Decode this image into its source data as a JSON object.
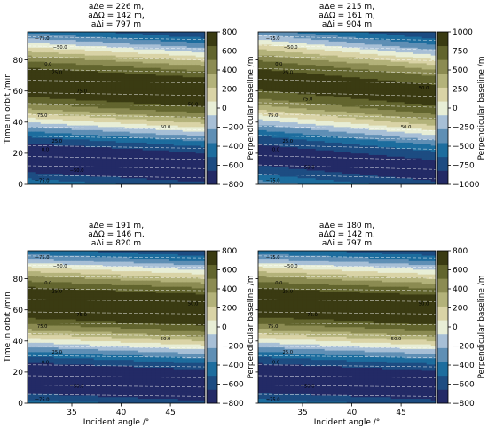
{
  "figure": {
    "background": "#ffffff",
    "band_colors": [
      "#232a66",
      "#1d4c82",
      "#1d6d9e",
      "#5f8fb5",
      "#a7bfd6",
      "#e8eed6",
      "#d9d3a6",
      "#b3b27a",
      "#8b8b52",
      "#62652e",
      "#3a3b12"
    ]
  },
  "chart_data": [
    {
      "type": "contour",
      "title_lines": [
        "aΔe = 226 m,",
        "aΔΩ = 142 m,",
        "aΔi = 797 m"
      ],
      "xlabel": "",
      "ylabel": "Time in orbit /min",
      "xlim": [
        30.5,
        48.5
      ],
      "ylim": [
        0,
        98
      ],
      "xticks": [
        35,
        40,
        45
      ],
      "xtick_labels": [
        "",
        "",
        ""
      ],
      "yticks": [
        0,
        20,
        40,
        60,
        80
      ],
      "ytick_labels": [
        "0",
        "20",
        "40",
        "60",
        "80"
      ],
      "colorbar": {
        "label": "Perpendicular baseline /m",
        "range": [
          -800,
          800
        ],
        "ticks": [
          -800,
          -600,
          -400,
          -200,
          0,
          200,
          400,
          600,
          800
        ],
        "tick_labels": [
          "−800",
          "−600",
          "−400",
          "−200",
          "0",
          "200",
          "400",
          "600",
          "800"
        ]
      },
      "model": {
        "amplitude": 797,
        "period": 97,
        "phase": -14,
        "tilt": 0.35,
        "x0": 39.5
      },
      "contour_labels": [
        {
          "text": "−75.0",
          "x": 32.0,
          "y": 94.0
        },
        {
          "text": "−50.0",
          "x": 33.8,
          "y": 88.3
        },
        {
          "text": "0.0",
          "x": 32.6,
          "y": 77.5
        },
        {
          "text": "25.0",
          "x": 33.5,
          "y": 72.0
        },
        {
          "text": "75.0",
          "x": 36.0,
          "y": 60.0
        },
        {
          "text": "50.0",
          "x": 47.3,
          "y": 51.5
        },
        {
          "text": "75.0",
          "x": 32.0,
          "y": 44.5
        },
        {
          "text": "50.0",
          "x": 44.5,
          "y": 37.0
        },
        {
          "text": "25.0",
          "x": 33.5,
          "y": 28.0
        },
        {
          "text": "0.0",
          "x": 32.3,
          "y": 22.5
        },
        {
          "text": "−50.0",
          "x": 35.5,
          "y": 9.0
        },
        {
          "text": "−75.0",
          "x": 32.0,
          "y": 2.5
        }
      ]
    },
    {
      "type": "contour",
      "title_lines": [
        "aΔe = 215 m,",
        "aΔΩ = 161 m,",
        "aΔi = 904 m"
      ],
      "xlabel": "",
      "ylabel": "",
      "xlim": [
        30.5,
        48.5
      ],
      "ylim": [
        0,
        98
      ],
      "xticks": [
        35,
        40,
        45
      ],
      "xtick_labels": [
        "",
        "",
        ""
      ],
      "yticks": [
        0,
        20,
        40,
        60,
        80
      ],
      "ytick_labels": [
        "",
        "",
        "",
        "",
        ""
      ],
      "colorbar": {
        "label": "Perpendicular baseline /m",
        "range": [
          -1000,
          1000
        ],
        "ticks": [
          -1000,
          -750,
          -500,
          -250,
          0,
          250,
          500,
          750,
          1000
        ],
        "tick_labels": [
          "−1000",
          "−750",
          "−500",
          "−250",
          "0",
          "250",
          "500",
          "750",
          "1000"
        ]
      },
      "model": {
        "amplitude": 904,
        "period": 97,
        "phase": -14,
        "tilt": 0.55,
        "x0": 39.5
      },
      "contour_labels": [
        {
          "text": "−75.0",
          "x": 32.0,
          "y": 94.0
        },
        {
          "text": "−50.0",
          "x": 33.8,
          "y": 88.3
        },
        {
          "text": "0.0",
          "x": 32.6,
          "y": 77.5
        },
        {
          "text": "25.0",
          "x": 33.5,
          "y": 72.0
        },
        {
          "text": "75.0",
          "x": 35.5,
          "y": 55.0
        },
        {
          "text": "50.0",
          "x": 47.3,
          "y": 62.0
        },
        {
          "text": "75.0",
          "x": 32.0,
          "y": 44.5
        },
        {
          "text": "50.0",
          "x": 45.5,
          "y": 37.0
        },
        {
          "text": "25.0",
          "x": 33.5,
          "y": 28.0
        },
        {
          "text": "0.0",
          "x": 32.3,
          "y": 22.5
        },
        {
          "text": "−50.0",
          "x": 35.5,
          "y": 11.0
        },
        {
          "text": "−75.0",
          "x": 32.0,
          "y": 2.5
        }
      ]
    },
    {
      "type": "contour",
      "title_lines": [
        "aΔe = 191 m,",
        "aΔΩ = 146 m,",
        "aΔi = 820 m"
      ],
      "xlabel": "Incident angle /°",
      "ylabel": "Time in orbit /min",
      "xlim": [
        30.5,
        48.5
      ],
      "ylim": [
        0,
        98
      ],
      "xticks": [
        35,
        40,
        45
      ],
      "xtick_labels": [
        "35",
        "40",
        "45"
      ],
      "yticks": [
        0,
        20,
        40,
        60,
        80
      ],
      "ytick_labels": [
        "0",
        "20",
        "40",
        "60",
        "80"
      ],
      "colorbar": {
        "label": "Perpendicular baseline /m",
        "range": [
          -800,
          800
        ],
        "ticks": [
          -800,
          -600,
          -400,
          -200,
          0,
          200,
          400,
          600,
          800
        ],
        "tick_labels": [
          "−800",
          "−600",
          "−400",
          "−200",
          "0",
          "200",
          "400",
          "600",
          "800"
        ]
      },
      "model": {
        "amplitude": 820,
        "period": 97,
        "phase": -14,
        "tilt": 0.25,
        "x0": 39.5
      },
      "contour_labels": [
        {
          "text": "−75.0",
          "x": 32.0,
          "y": 94.0
        },
        {
          "text": "−50.0",
          "x": 33.8,
          "y": 88.3
        },
        {
          "text": "0.0",
          "x": 32.6,
          "y": 77.5
        },
        {
          "text": "25.0",
          "x": 33.5,
          "y": 72.0
        },
        {
          "text": "75.0",
          "x": 36.0,
          "y": 57.0
        },
        {
          "text": "50.0",
          "x": 47.3,
          "y": 64.0
        },
        {
          "text": "75.0",
          "x": 32.0,
          "y": 49.5
        },
        {
          "text": "50.0",
          "x": 44.5,
          "y": 41.5
        },
        {
          "text": "25.0",
          "x": 33.5,
          "y": 33.0
        },
        {
          "text": "0.0",
          "x": 32.3,
          "y": 26.5
        },
        {
          "text": "−50.0",
          "x": 35.5,
          "y": 11.0
        },
        {
          "text": "−75.0",
          "x": 32.0,
          "y": 2.5
        }
      ]
    },
    {
      "type": "contour",
      "title_lines": [
        "aΔe = 180 m,",
        "aΔΩ = 142 m,",
        "aΔi = 797 m"
      ],
      "xlabel": "Incident angle /°",
      "ylabel": "",
      "xlim": [
        30.5,
        48.5
      ],
      "ylim": [
        0,
        98
      ],
      "xticks": [
        35,
        40,
        45
      ],
      "xtick_labels": [
        "35",
        "40",
        "45"
      ],
      "yticks": [
        0,
        20,
        40,
        60,
        80
      ],
      "ytick_labels": [
        "",
        "",
        "",
        "",
        ""
      ],
      "colorbar": {
        "label": "Perpendicular baseline /m",
        "range": [
          -800,
          800
        ],
        "ticks": [
          -800,
          -600,
          -400,
          -200,
          0,
          200,
          400,
          600,
          800
        ],
        "tick_labels": [
          "−800",
          "−600",
          "−400",
          "−200",
          "0",
          "200",
          "400",
          "600",
          "800"
        ]
      },
      "model": {
        "amplitude": 797,
        "period": 97,
        "phase": -14,
        "tilt": 0.25,
        "x0": 39.5
      },
      "contour_labels": [
        {
          "text": "−75.0",
          "x": 32.0,
          "y": 94.0
        },
        {
          "text": "−50.0",
          "x": 33.8,
          "y": 88.3
        },
        {
          "text": "0.0",
          "x": 32.6,
          "y": 77.5
        },
        {
          "text": "25.0",
          "x": 33.5,
          "y": 72.0
        },
        {
          "text": "75.0",
          "x": 36.0,
          "y": 57.0
        },
        {
          "text": "50.0",
          "x": 47.3,
          "y": 64.0
        },
        {
          "text": "75.0",
          "x": 32.0,
          "y": 49.5
        },
        {
          "text": "50.0",
          "x": 44.5,
          "y": 41.5
        },
        {
          "text": "25.0",
          "x": 33.5,
          "y": 33.0
        },
        {
          "text": "0.0",
          "x": 32.3,
          "y": 26.5
        },
        {
          "text": "−50.0",
          "x": 35.5,
          "y": 11.0
        },
        {
          "text": "−75.0",
          "x": 32.0,
          "y": 2.5
        }
      ]
    }
  ]
}
